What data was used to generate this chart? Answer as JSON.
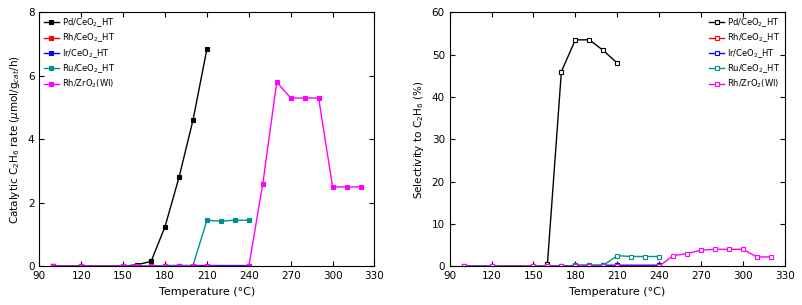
{
  "left_plot": {
    "xlabel": "Temperature (°C)",
    "ylabel": "Catalytic C$_2$H$_6$ rate ($\\mu$mol/g$_{cat}$/h)",
    "xlim": [
      90,
      330
    ],
    "ylim": [
      0,
      8
    ],
    "xticks": [
      90,
      120,
      150,
      180,
      210,
      240,
      270,
      300,
      330
    ],
    "yticks": [
      0,
      2,
      4,
      6,
      8
    ],
    "series": [
      {
        "label": "Pd/CeO$_2$_HT",
        "color": "black",
        "marker": "s",
        "filled": true,
        "x": [
          100,
          120,
          150,
          160,
          170,
          180,
          190,
          200,
          210
        ],
        "y": [
          0.0,
          0.0,
          0.0,
          0.05,
          0.15,
          1.25,
          2.8,
          4.6,
          6.85
        ]
      },
      {
        "label": "Rh/CeO$_2$_HT",
        "color": "red",
        "marker": "s",
        "filled": true,
        "x": [
          100,
          120,
          150,
          160,
          170,
          180,
          190,
          200,
          210,
          240
        ],
        "y": [
          0.0,
          0.0,
          0.0,
          0.0,
          0.0,
          0.02,
          0.02,
          0.02,
          0.02,
          0.02
        ]
      },
      {
        "label": "Ir/CeO$_2$_HT",
        "color": "blue",
        "marker": "s",
        "filled": true,
        "x": [
          100,
          120,
          150,
          160,
          170,
          180,
          190,
          200,
          210,
          240
        ],
        "y": [
          0.0,
          0.0,
          0.0,
          0.0,
          0.0,
          0.02,
          0.02,
          0.02,
          0.02,
          0.02
        ]
      },
      {
        "label": "Ru/CeO$_2$_HT",
        "color": "#009090",
        "marker": "s",
        "filled": true,
        "x": [
          100,
          120,
          150,
          160,
          170,
          180,
          190,
          200,
          210,
          220,
          230,
          240
        ],
        "y": [
          0.0,
          0.0,
          0.0,
          0.0,
          0.0,
          0.02,
          0.02,
          0.02,
          1.45,
          1.42,
          1.45,
          1.45
        ]
      },
      {
        "label": "Rh/ZrO$_2$(WI)",
        "color": "magenta",
        "marker": "s",
        "filled": true,
        "x": [
          100,
          120,
          150,
          160,
          170,
          180,
          190,
          200,
          210,
          240,
          250,
          260,
          270,
          280,
          290,
          300,
          310,
          320
        ],
        "y": [
          0.0,
          0.0,
          0.0,
          0.0,
          0.0,
          0.0,
          0.0,
          0.0,
          0.0,
          0.0,
          2.6,
          5.8,
          5.3,
          5.3,
          5.3,
          2.5,
          2.5,
          2.5
        ]
      }
    ]
  },
  "right_plot": {
    "xlabel": "Temperature (°C)",
    "ylabel": "Selectivity to C$_2$H$_6$ (%)",
    "xlim": [
      90,
      330
    ],
    "ylim": [
      0,
      60
    ],
    "xticks": [
      90,
      120,
      150,
      180,
      210,
      240,
      270,
      300,
      330
    ],
    "yticks": [
      0,
      10,
      20,
      30,
      40,
      50,
      60
    ],
    "series": [
      {
        "label": "Pd/CeO$_2$_HT",
        "color": "black",
        "marker": "s",
        "filled": false,
        "x": [
          160,
          170,
          180,
          190,
          200,
          210
        ],
        "y": [
          0.5,
          46.0,
          53.5,
          53.5,
          51.0,
          48.0
        ]
      },
      {
        "label": "Rh/CeO$_2$_HT",
        "color": "red",
        "marker": "s",
        "filled": false,
        "x": [
          100,
          120,
          150,
          160,
          170,
          180,
          190,
          200,
          210,
          240
        ],
        "y": [
          0.0,
          0.0,
          0.0,
          0.0,
          0.0,
          0.2,
          0.2,
          0.2,
          0.2,
          0.2
        ]
      },
      {
        "label": "Ir/CeO$_2$_HT",
        "color": "blue",
        "marker": "s",
        "filled": false,
        "x": [
          100,
          120,
          150,
          160,
          170,
          180,
          190,
          200,
          210,
          240
        ],
        "y": [
          0.0,
          0.0,
          0.0,
          0.0,
          0.0,
          0.2,
          0.2,
          0.2,
          0.2,
          0.2
        ]
      },
      {
        "label": "Ru/CeO$_2$_HT",
        "color": "#009090",
        "marker": "s",
        "filled": false,
        "x": [
          100,
          120,
          150,
          160,
          170,
          180,
          190,
          200,
          210,
          220,
          230,
          240
        ],
        "y": [
          0.0,
          0.0,
          0.0,
          0.0,
          0.0,
          0.2,
          0.2,
          0.2,
          2.5,
          2.3,
          2.3,
          2.3
        ]
      },
      {
        "label": "Rh/ZrO$_2$(WI)",
        "color": "magenta",
        "marker": "s",
        "filled": false,
        "x": [
          100,
          120,
          150,
          160,
          170,
          180,
          190,
          200,
          210,
          240,
          250,
          260,
          270,
          280,
          290,
          300,
          310,
          320
        ],
        "y": [
          0.0,
          0.0,
          0.0,
          0.0,
          0.0,
          0.0,
          0.0,
          0.0,
          0.0,
          0.0,
          2.5,
          3.0,
          3.8,
          4.0,
          4.0,
          4.0,
          2.2,
          2.2
        ]
      }
    ]
  }
}
